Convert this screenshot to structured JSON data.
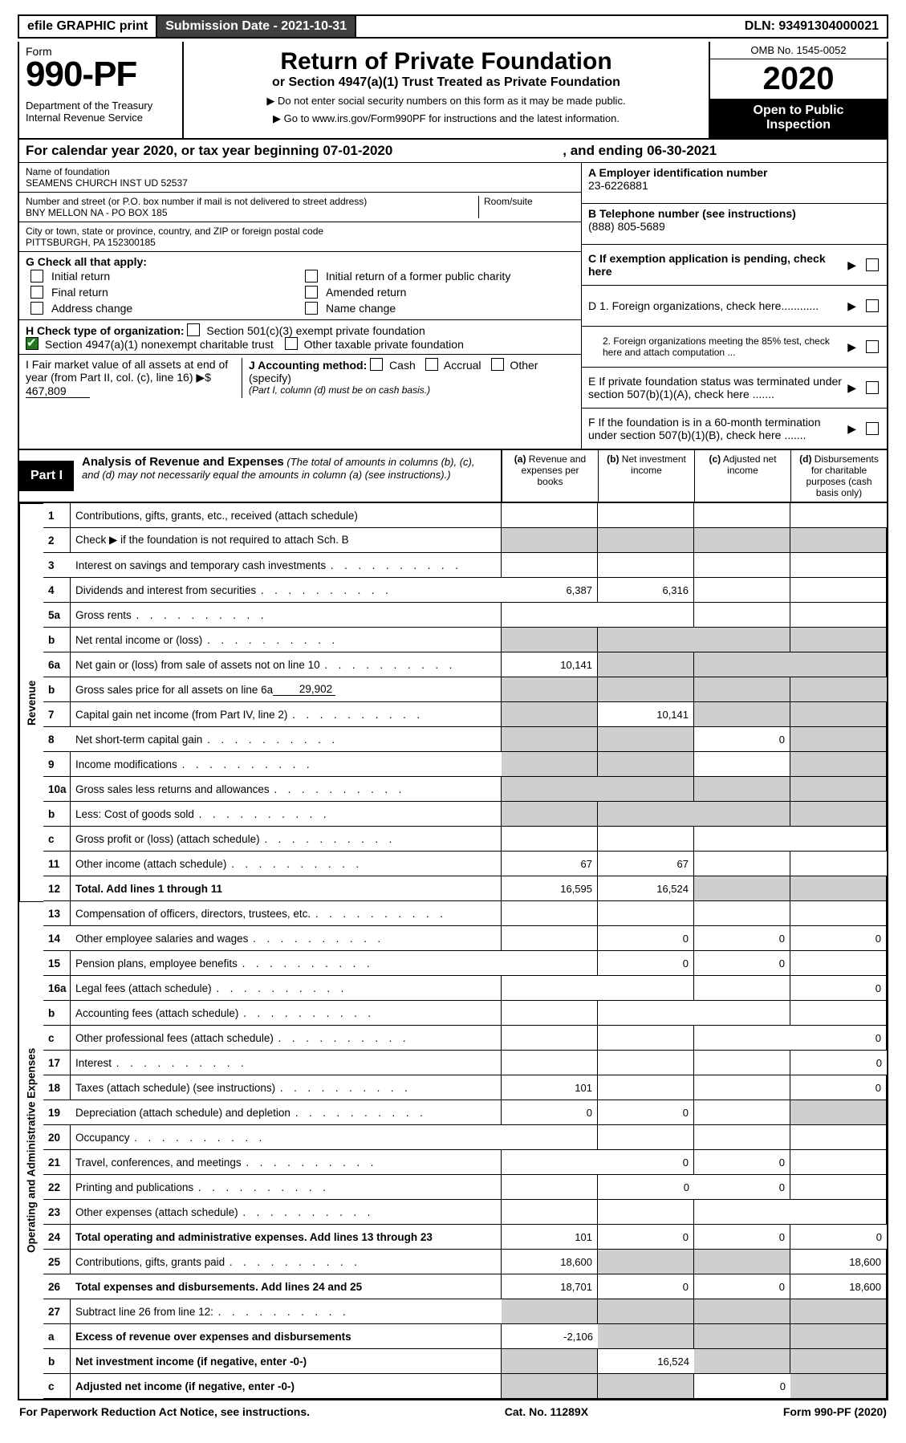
{
  "topbar": {
    "efile": "efile GRAPHIC print",
    "subdate_label": "Submission Date - 2021-10-31",
    "dln": "DLN: 93491304000021"
  },
  "head": {
    "form_word": "Form",
    "form_num": "990-PF",
    "dept": "Department of the Treasury\nInternal Revenue Service",
    "title": "Return of Private Foundation",
    "subtitle": "or Section 4947(a)(1) Trust Treated as Private Foundation",
    "note1": "▶ Do not enter social security numbers on this form as it may be made public.",
    "note2": "▶ Go to www.irs.gov/Form990PF for instructions and the latest information.",
    "omb": "OMB No. 1545-0052",
    "year": "2020",
    "open": "Open to Public\nInspection"
  },
  "cal": {
    "lead": "For calendar year 2020, or tax year beginning 07-01-2020",
    "mid": ", and ending 06-30-2021"
  },
  "id": {
    "name_label": "Name of foundation",
    "name": "SEAMENS CHURCH INST UD 52537",
    "addr_label": "Number and street (or P.O. box number if mail is not delivered to street address)",
    "addr": "BNY MELLON NA - PO BOX 185",
    "room_label": "Room/suite",
    "city_label": "City or town, state or province, country, and ZIP or foreign postal code",
    "city": "PITTSBURGH, PA  152300185",
    "a_label": "A Employer identification number",
    "a_value": "23-6226881",
    "b_label": "B Telephone number (see instructions)",
    "b_value": "(888) 805-5689",
    "c_label": "C If exemption application is pending, check here",
    "g_label": "G Check all that apply:",
    "g_opts": [
      "Initial return",
      "Initial return of a former public charity",
      "Final return",
      "Amended return",
      "Address change",
      "Name change"
    ],
    "h_label": "H Check type of organization:",
    "h_opts": [
      "Section 501(c)(3) exempt private foundation",
      "Section 4947(a)(1) nonexempt charitable trust",
      "Other taxable private foundation"
    ],
    "d1": "D 1. Foreign organizations, check here............",
    "d2": "2. Foreign organizations meeting the 85% test, check here and attach computation ...",
    "e": "E  If private foundation status was terminated under section 507(b)(1)(A), check here .......",
    "f": "F  If the foundation is in a 60-month termination under section 507(b)(1)(B), check here .......",
    "i_label": "I Fair market value of all assets at end of year (from Part II, col. (c), line 16) ▶$",
    "i_value": "467,809",
    "j_label": "J Accounting method:",
    "j_opts": [
      "Cash",
      "Accrual",
      "Other (specify)"
    ],
    "j_note": "(Part I, column (d) must be on cash basis.)"
  },
  "part1": {
    "label": "Part I",
    "title": "Analysis of Revenue and Expenses",
    "desc": "(The total of amounts in columns (b), (c), and (d) may not necessarily equal the amounts in column (a) (see instructions).)",
    "cols": [
      "(a)  Revenue and expenses per books",
      "(b)  Net investment income",
      "(c)  Adjusted net income",
      "(d)  Disbursements for charitable purposes (cash basis only)"
    ]
  },
  "side": {
    "revenue": "Revenue",
    "expenses": "Operating and Administrative Expenses"
  },
  "rows": {
    "1": {
      "n": "1",
      "t": "Contributions, gifts, grants, etc., received (attach schedule)"
    },
    "2": {
      "n": "2",
      "t": "Check ▶      if the foundation is not required to attach Sch. B"
    },
    "3": {
      "n": "3",
      "t": "Interest on savings and temporary cash investments"
    },
    "4": {
      "n": "4",
      "t": "Dividends and interest from securities",
      "a": "6,387",
      "b": "6,316"
    },
    "5a": {
      "n": "5a",
      "t": "Gross rents"
    },
    "5b": {
      "n": "b",
      "t": "Net rental income or (loss)"
    },
    "6a": {
      "n": "6a",
      "t": "Net gain or (loss) from sale of assets not on line 10",
      "a": "10,141"
    },
    "6b": {
      "n": "b",
      "t": "Gross sales price for all assets on line 6a",
      "inline": "29,902"
    },
    "7": {
      "n": "7",
      "t": "Capital gain net income (from Part IV, line 2)",
      "b": "10,141"
    },
    "8": {
      "n": "8",
      "t": "Net short-term capital gain",
      "c": "0"
    },
    "9": {
      "n": "9",
      "t": "Income modifications"
    },
    "10a": {
      "n": "10a",
      "t": "Gross sales less returns and allowances"
    },
    "10b": {
      "n": "b",
      "t": "Less: Cost of goods sold"
    },
    "10c": {
      "n": "c",
      "t": "Gross profit or (loss) (attach schedule)"
    },
    "11": {
      "n": "11",
      "t": "Other income (attach schedule)",
      "a": "67",
      "b": "67"
    },
    "12": {
      "n": "12",
      "t": "Total. Add lines 1 through 11",
      "a": "16,595",
      "b": "16,524",
      "bold": true
    },
    "13": {
      "n": "13",
      "t": "Compensation of officers, directors, trustees, etc."
    },
    "14": {
      "n": "14",
      "t": "Other employee salaries and wages",
      "b": "0",
      "c": "0",
      "d": "0"
    },
    "15": {
      "n": "15",
      "t": "Pension plans, employee benefits",
      "b": "0",
      "c": "0"
    },
    "16a": {
      "n": "16a",
      "t": "Legal fees (attach schedule)",
      "d": "0"
    },
    "16b": {
      "n": "b",
      "t": "Accounting fees (attach schedule)"
    },
    "16c": {
      "n": "c",
      "t": "Other professional fees (attach schedule)",
      "d": "0"
    },
    "17": {
      "n": "17",
      "t": "Interest",
      "d": "0"
    },
    "18": {
      "n": "18",
      "t": "Taxes (attach schedule) (see instructions)",
      "a": "101",
      "d": "0"
    },
    "19": {
      "n": "19",
      "t": "Depreciation (attach schedule) and depletion",
      "a": "0",
      "b": "0"
    },
    "20": {
      "n": "20",
      "t": "Occupancy"
    },
    "21": {
      "n": "21",
      "t": "Travel, conferences, and meetings",
      "b": "0",
      "c": "0"
    },
    "22": {
      "n": "22",
      "t": "Printing and publications",
      "b": "0",
      "c": "0"
    },
    "23": {
      "n": "23",
      "t": "Other expenses (attach schedule)"
    },
    "24": {
      "n": "24",
      "t": "Total operating and administrative expenses. Add lines 13 through 23",
      "a": "101",
      "b": "0",
      "c": "0",
      "d": "0",
      "bold": true
    },
    "25": {
      "n": "25",
      "t": "Contributions, gifts, grants paid",
      "a": "18,600",
      "d": "18,600"
    },
    "26": {
      "n": "26",
      "t": "Total expenses and disbursements. Add lines 24 and 25",
      "a": "18,701",
      "b": "0",
      "c": "0",
      "d": "18,600",
      "bold": true
    },
    "27": {
      "n": "27",
      "t": "Subtract line 26 from line 12:"
    },
    "27a": {
      "n": "a",
      "t": "Excess of revenue over expenses and disbursements",
      "a": "-2,106",
      "bold": true
    },
    "27b": {
      "n": "b",
      "t": "Net investment income (if negative, enter -0-)",
      "b": "16,524",
      "bold": true
    },
    "27c": {
      "n": "c",
      "t": "Adjusted net income (if negative, enter -0-)",
      "c": "0",
      "bold": true
    }
  },
  "footer": {
    "left": "For Paperwork Reduction Act Notice, see instructions.",
    "mid": "Cat. No. 11289X",
    "right": "Form 990-PF (2020)"
  },
  "greyCells": {
    "2": [
      "a",
      "b",
      "c",
      "d"
    ],
    "5b": [
      "a",
      "b",
      "c",
      "d"
    ],
    "6a": [
      "b",
      "c",
      "d"
    ],
    "6b": [
      "a",
      "b",
      "c",
      "d"
    ],
    "7": [
      "a",
      "c",
      "d"
    ],
    "8": [
      "a",
      "b",
      "d"
    ],
    "9": [
      "a",
      "b",
      "d"
    ],
    "10a": [
      "a",
      "b",
      "c",
      "d"
    ],
    "10b": [
      "a",
      "b",
      "c",
      "d"
    ],
    "12": [
      "c",
      "d"
    ],
    "19": [
      "d"
    ],
    "25": [
      "b",
      "c"
    ],
    "27": [
      "a",
      "b",
      "c",
      "d"
    ],
    "27a": [
      "b",
      "c",
      "d"
    ],
    "27b": [
      "a",
      "c",
      "d"
    ],
    "27c": [
      "a",
      "b",
      "d"
    ]
  },
  "rowOrder": [
    "1",
    "2",
    "3",
    "4",
    "5a",
    "5b",
    "6a",
    "6b",
    "7",
    "8",
    "9",
    "10a",
    "10b",
    "10c",
    "11",
    "12",
    "13",
    "14",
    "15",
    "16a",
    "16b",
    "16c",
    "17",
    "18",
    "19",
    "20",
    "21",
    "22",
    "23",
    "24",
    "25",
    "26",
    "27",
    "27a",
    "27b",
    "27c"
  ],
  "revenueSpan": 16,
  "expenseSpan": 20
}
